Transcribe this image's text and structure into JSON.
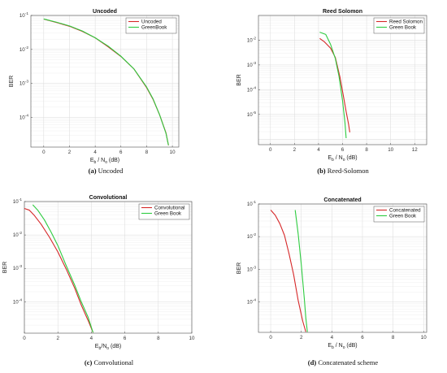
{
  "chart_data": [
    {
      "type": "line",
      "title": "Uncoded",
      "xlabel": "E_b / N_o (dB)",
      "ylabel": "BER",
      "y_scale": "log",
      "xlim": [
        -1,
        10.5
      ],
      "ylim": [
        1.33e-05,
        0.1
      ],
      "x_ticks": [
        0,
        2,
        4,
        6,
        8,
        10
      ],
      "y_ticks": [
        "10^-1",
        "10^-2",
        "10^-3",
        "10^-4"
      ],
      "grid": true,
      "legend": "top-right",
      "caption_letter": "(a)",
      "caption_text": " Uncoded",
      "series": [
        {
          "name": "Uncoded",
          "color": "#d62728",
          "x": [
            0,
            1,
            2,
            3,
            4,
            5,
            6,
            7,
            8,
            8.5,
            9,
            9.5,
            9.7
          ],
          "y": [
            0.078,
            0.062,
            0.048,
            0.034,
            0.022,
            0.012,
            0.0062,
            0.0027,
            0.00075,
            0.00034,
            0.00012,
            3.5e-05,
            1.5e-05
          ]
        },
        {
          "name": "GreenBook",
          "color": "#2ecc40",
          "x": [
            0,
            1,
            2,
            3,
            4,
            5,
            6,
            7,
            8,
            8.5,
            9,
            9.5,
            9.7
          ],
          "y": [
            0.079,
            0.063,
            0.049,
            0.035,
            0.022,
            0.0125,
            0.0063,
            0.0027,
            0.00078,
            0.00035,
            0.00012,
            3.4e-05,
            1.5e-05
          ]
        }
      ]
    },
    {
      "type": "line",
      "title": "Reed Solomon",
      "xlabel": "E_b / N_o (dB)",
      "ylabel": "BER",
      "y_scale": "log",
      "xlim": [
        -1,
        13
      ],
      "ylim": [
        6e-07,
        0.1
      ],
      "x_ticks": [
        0,
        2,
        4,
        6,
        8,
        10,
        12
      ],
      "y_ticks": [
        "10^-2",
        "10^-3",
        "10^-4",
        "10^-5"
      ],
      "grid": true,
      "legend": "top-right",
      "caption_letter": "(b)",
      "caption_text": " Reed-Solomon",
      "series": [
        {
          "name": "Reed Solomon",
          "color": "#d62728",
          "x": [
            4.1,
            4.5,
            5,
            5.4,
            5.8,
            6.1,
            6.3,
            6.5,
            6.6
          ],
          "y": [
            0.0118,
            0.0085,
            0.0048,
            0.002,
            0.0003,
            4.5e-05,
            1.3e-05,
            4e-06,
            1.9e-06
          ]
        },
        {
          "name": "Green Book",
          "color": "#2ecc40",
          "x": [
            4.1,
            4.6,
            5,
            5.4,
            5.7,
            6,
            6.2,
            6.3
          ],
          "y": [
            0.021,
            0.017,
            0.0068,
            0.0018,
            0.00035,
            3.5e-05,
            4.5e-06,
            1.1e-06
          ]
        }
      ]
    },
    {
      "type": "line",
      "title": "Convolutional",
      "xlabel": "E_b/N_o (dB)",
      "ylabel": "BER",
      "y_scale": "log",
      "xlim": [
        0,
        10
      ],
      "ylim": [
        1.15e-05,
        0.1
      ],
      "x_ticks": [
        0,
        2,
        4,
        6,
        8,
        10
      ],
      "y_ticks": [
        "10^-1",
        "10^-2",
        "10^-3",
        "10^-4"
      ],
      "grid": true,
      "legend": "top-right",
      "caption_letter": "(c)",
      "caption_text": " Convolutional",
      "series": [
        {
          "name": "Convolutional",
          "color": "#d62728",
          "x": [
            0,
            0.3,
            0.6,
            1,
            1.5,
            2,
            2.5,
            3,
            3.4,
            3.8,
            4.1
          ],
          "y": [
            0.062,
            0.055,
            0.038,
            0.021,
            0.0085,
            0.0031,
            0.00095,
            0.00026,
            8e-05,
            2.8e-05,
            1.2e-05
          ]
        },
        {
          "name": "Green Book",
          "color": "#2ecc40",
          "x": [
            0.5,
            0.8,
            1.2,
            1.6,
            2,
            2.5,
            3,
            3.4,
            3.8,
            4.1
          ],
          "y": [
            0.08,
            0.055,
            0.028,
            0.012,
            0.0048,
            0.0012,
            0.00032,
            0.0001,
            3.5e-05,
            1.2e-05
          ]
        }
      ]
    },
    {
      "type": "line",
      "title": "Concatenated",
      "xlabel": "E_b / N_o (dB)",
      "ylabel": "BER",
      "y_scale": "log",
      "xlim": [
        -0.8,
        10.2
      ],
      "ylim": [
        1.16e-05,
        0.1
      ],
      "x_ticks": [
        0,
        2,
        4,
        6,
        8,
        10
      ],
      "y_ticks": [
        "10^-1",
        "10^-2",
        "10^-3",
        "10^-4"
      ],
      "grid": true,
      "legend": "top-right",
      "caption_letter": "(d)",
      "caption_text": " Concatenated scheme",
      "series": [
        {
          "name": "Concatenated",
          "color": "#d62728",
          "x": [
            0,
            0.3,
            0.6,
            0.9,
            1.2,
            1.5,
            1.8,
            2.1,
            2.3
          ],
          "y": [
            0.065,
            0.045,
            0.025,
            0.011,
            0.003,
            0.00068,
            0.00011,
            2.5e-05,
            1.2e-05
          ]
        },
        {
          "name": "Green Book",
          "color": "#2ecc40",
          "x": [
            1.6,
            1.8,
            2,
            2.2,
            2.3,
            2.4
          ],
          "y": [
            0.065,
            0.012,
            0.0014,
            0.00012,
            3.2e-05,
            1.2e-05
          ]
        }
      ]
    }
  ]
}
